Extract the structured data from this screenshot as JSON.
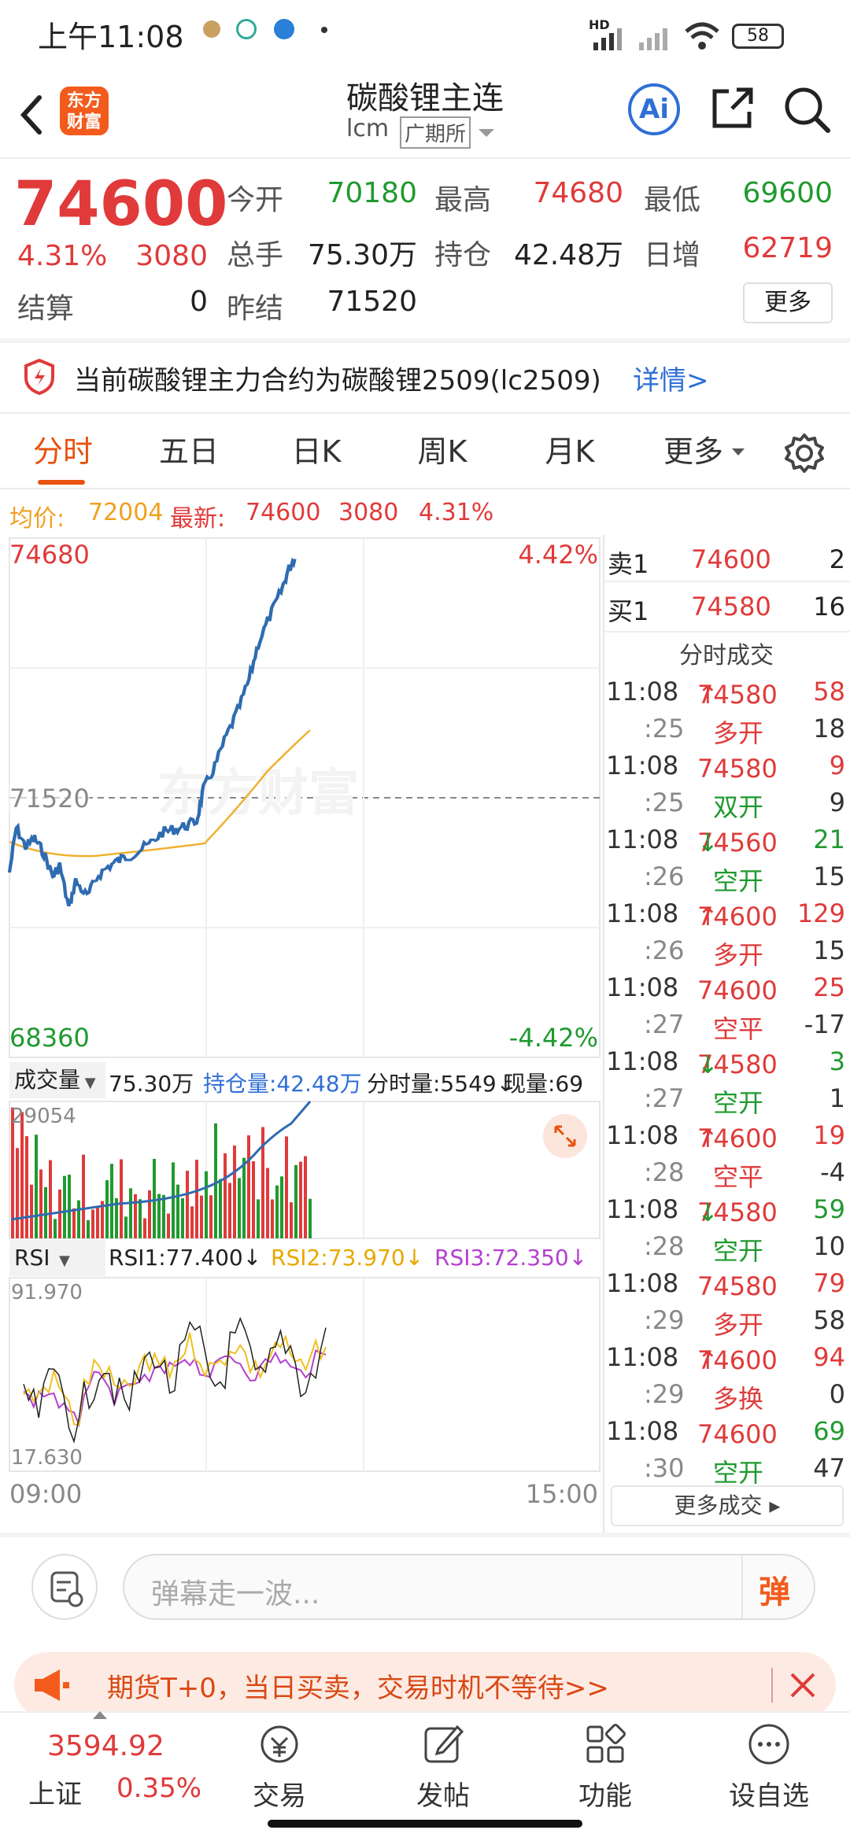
{
  "status": {
    "time": "上午11:08",
    "network": "HD",
    "battery": "58"
  },
  "nav": {
    "title": "碳酸锂主连",
    "code": "lcm",
    "exchange": "广期所",
    "logo_text": "东方财富",
    "ai_label": "Ai"
  },
  "quote": {
    "price": "74600",
    "change_pct": "4.31%",
    "change": "3080",
    "settle_label": "结算",
    "settle": "0",
    "open_label": "今开",
    "open": "70180",
    "high_label": "最高",
    "high": "74680",
    "low_label": "最低",
    "low": "69600",
    "volume_label": "总手",
    "volume": "75.30万",
    "oi_label": "持仓",
    "oi": "42.48万",
    "daily_inc_label": "日增",
    "daily_inc": "62719",
    "prev_settle_label": "昨结",
    "prev_settle": "71520",
    "more_button": "更多"
  },
  "notice": {
    "text": "当前碳酸锂主力合约为碳酸锂2509(lc2509)",
    "link": "详情>"
  },
  "tabs": [
    "分时",
    "五日",
    "日K",
    "周K",
    "月K",
    "更多"
  ],
  "infoline": {
    "avg_label": "均价:",
    "avg": "72004",
    "last_label": "最新:",
    "last": "74600",
    "chg": "3080",
    "pct": "4.31%"
  },
  "chart": {
    "top_price": "74680",
    "bottom_price": "68360",
    "mid_price": "71520",
    "top_pct": "4.42%",
    "bottom_pct": "-4.42%",
    "watermark": "东方财富",
    "vol_selector": "成交量",
    "vol_value": "75.30万",
    "oi_label": "持仓量:42.48万",
    "tick_vol": "分时量:5549↓",
    "cur_vol": "现量:69",
    "vol_max": "29054",
    "rsi_selector": "RSI",
    "rsi1": "RSI1:77.400↓",
    "rsi2": "RSI2:73.970↓",
    "rsi3": "RSI3:72.350↓",
    "rsi_max": "91.970",
    "rsi_min": "17.630",
    "time_start": "09:00",
    "time_end": "15:00",
    "colors": {
      "price": "#2f6bb0",
      "avg": "#f0b030",
      "up": "#e03a3a",
      "down": "#1f9a2f"
    }
  },
  "book": {
    "sell_label": "卖1",
    "sell_price": "74600",
    "sell_qty": "2",
    "buy_label": "买1",
    "buy_price": "74580",
    "buy_qty": "16",
    "title": "分时成交",
    "trades": [
      {
        "t": "11:08",
        "p": "74580",
        "arrow": "↑",
        "q": "58",
        "s": ":25",
        "type": "多开",
        "n": "18",
        "pc": "red",
        "qc": "red",
        "tc": "red"
      },
      {
        "t": "11:08",
        "p": "74580",
        "arrow": "",
        "q": "9",
        "s": ":25",
        "type": "双开",
        "n": "9",
        "pc": "red",
        "qc": "red",
        "tc": "green"
      },
      {
        "t": "11:08",
        "p": "74560",
        "arrow": "↓",
        "q": "21",
        "s": ":26",
        "type": "空开",
        "n": "15",
        "pc": "red",
        "qc": "green",
        "tc": "green"
      },
      {
        "t": "11:08",
        "p": "74600",
        "arrow": "↑",
        "q": "129",
        "s": ":26",
        "type": "多开",
        "n": "15",
        "pc": "red",
        "qc": "red",
        "tc": "red"
      },
      {
        "t": "11:08",
        "p": "74600",
        "arrow": "",
        "q": "25",
        "s": ":27",
        "type": "空平",
        "n": "-17",
        "pc": "red",
        "qc": "red",
        "tc": "red"
      },
      {
        "t": "11:08",
        "p": "74580",
        "arrow": "↓",
        "q": "3",
        "s": ":27",
        "type": "空开",
        "n": "1",
        "pc": "red",
        "qc": "green",
        "tc": "green"
      },
      {
        "t": "11:08",
        "p": "74600",
        "arrow": "↑",
        "q": "19",
        "s": ":28",
        "type": "空平",
        "n": "-4",
        "pc": "red",
        "qc": "red",
        "tc": "red"
      },
      {
        "t": "11:08",
        "p": "74580",
        "arrow": "↓",
        "q": "59",
        "s": ":28",
        "type": "空开",
        "n": "10",
        "pc": "red",
        "qc": "green",
        "tc": "green"
      },
      {
        "t": "11:08",
        "p": "74580",
        "arrow": "",
        "q": "79",
        "s": ":29",
        "type": "多开",
        "n": "58",
        "pc": "red",
        "qc": "red",
        "tc": "red"
      },
      {
        "t": "11:08",
        "p": "74600",
        "arrow": "↑",
        "q": "94",
        "s": ":29",
        "type": "多换",
        "n": "0",
        "pc": "red",
        "qc": "red",
        "tc": "red"
      },
      {
        "t": "11:08",
        "p": "74600",
        "arrow": "",
        "q": "69",
        "s": ":30",
        "type": "空开",
        "n": "47",
        "pc": "red",
        "qc": "green",
        "tc": "green"
      }
    ],
    "more": "更多成交"
  },
  "danmu": {
    "placeholder": "弹幕走一波...",
    "button": "弹"
  },
  "promo": {
    "text": "期货T+0，当日买卖，交易时机不等待>>"
  },
  "tabbar": {
    "index_value": "3594.92",
    "index_name": "上证",
    "index_pct": "0.35%",
    "items": [
      "交易",
      "发帖",
      "功能",
      "设自选"
    ]
  }
}
